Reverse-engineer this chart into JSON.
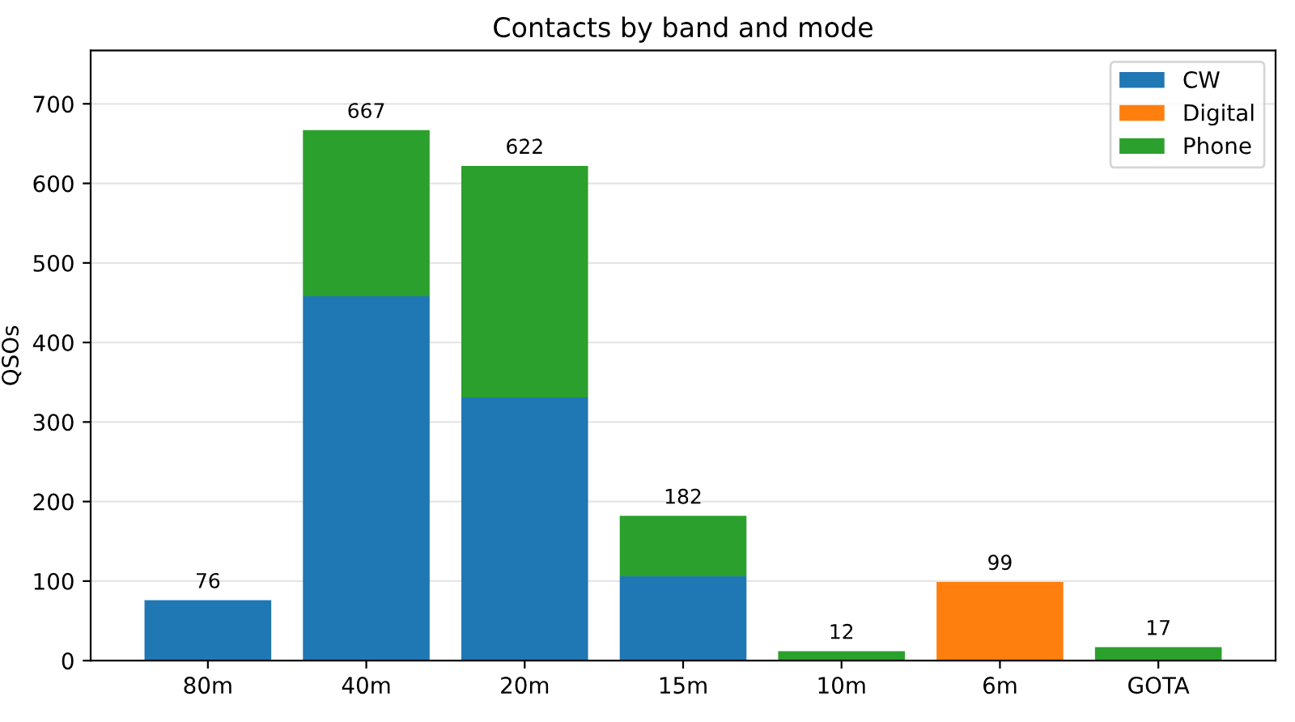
{
  "chart_data": {
    "type": "bar",
    "stacked": true,
    "title": "Contacts by band and mode",
    "ylabel": "QSOs",
    "categories": [
      "80m",
      "40m",
      "20m",
      "15m",
      "10m",
      "6m",
      "GOTA"
    ],
    "series": [
      {
        "name": "CW",
        "color": "#1f77b4",
        "values": [
          76,
          458,
          331,
          106,
          0,
          0,
          0
        ]
      },
      {
        "name": "Digital",
        "color": "#ff7f0e",
        "values": [
          0,
          0,
          0,
          0,
          0,
          99,
          0
        ]
      },
      {
        "name": "Phone",
        "color": "#2ca02c",
        "values": [
          0,
          209,
          291,
          76,
          12,
          0,
          17
        ]
      }
    ],
    "totals": [
      "76",
      "667",
      "622",
      "182",
      "12",
      "99",
      "17"
    ],
    "ylim": [
      0,
      767
    ],
    "yticks": [
      0,
      100,
      200,
      300,
      400,
      500,
      600,
      700
    ],
    "grid": "y",
    "legend": "top right"
  }
}
